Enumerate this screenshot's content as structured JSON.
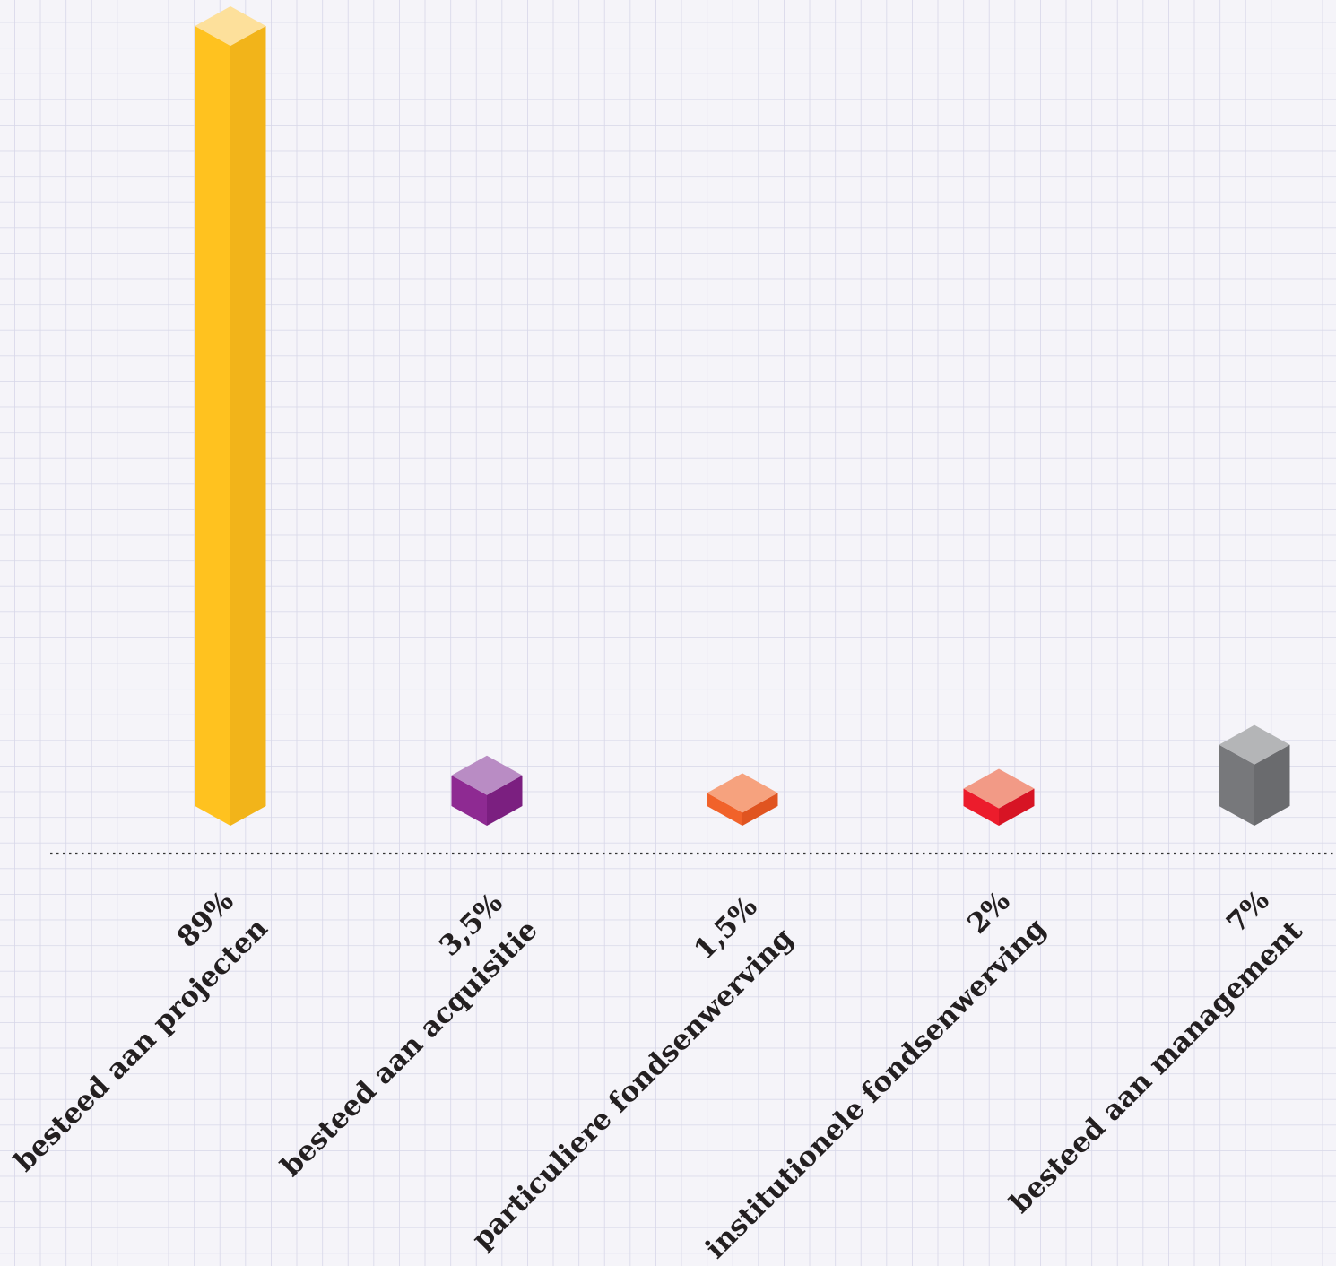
{
  "chart_data": {
    "type": "bar",
    "style": "3d-isometric-prism",
    "background": "graph-paper",
    "baseline": "dotted",
    "grid": true,
    "categories": [
      "besteed aan projecten",
      "besteed aan acquisitie",
      "particuliere fondsenwerving",
      "institutionele fondsenwerving",
      "besteed aan management"
    ],
    "values": [
      89,
      3.5,
      1.5,
      2,
      7
    ],
    "value_labels": [
      "89%",
      "3,5%",
      "1,5%",
      "2%",
      "7%"
    ],
    "colors": [
      {
        "top": "#fde09b",
        "front": "#ffc21f",
        "side": "#f2b41a"
      },
      {
        "top": "#b98cc4",
        "front": "#8e2a92",
        "side": "#7b1f80"
      },
      {
        "top": "#f6a27e",
        "front": "#f1622a",
        "side": "#e05420"
      },
      {
        "top": "#f29a86",
        "front": "#ec1c2c",
        "side": "#d71424"
      },
      {
        "top": "#b4b5b7",
        "front": "#77787b",
        "side": "#6a6b6e"
      }
    ],
    "ylim": [
      0,
      89
    ],
    "title": "",
    "xlabel": "",
    "ylabel": ""
  }
}
